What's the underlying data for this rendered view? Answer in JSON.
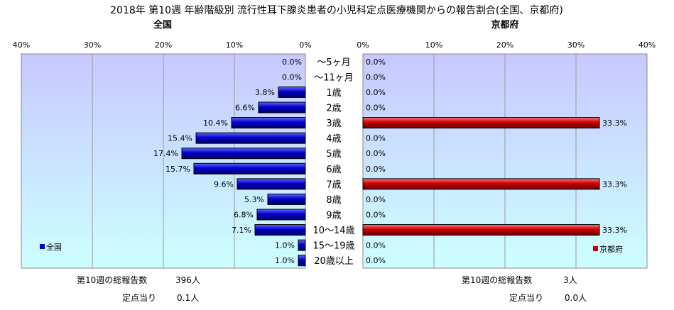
{
  "title": "2018年 第10週 年齢階級別 流行性耳下腺炎患者の小児科定点医療機関からの報告割合(全国、京都府)",
  "colors": {
    "national_bar": "#0000cc",
    "kyoto_bar": "#cc0000",
    "plot_bg_top": "#c8c8ff",
    "plot_bg_bottom": "#ccffff"
  },
  "chart_data": [
    {
      "type": "bar",
      "orientation": "horizontal",
      "direction": "right-to-left",
      "title": "全国",
      "legend": {
        "label": "全国",
        "position": "bottom-left"
      },
      "xlim": [
        0,
        40
      ],
      "xticks": [
        "40%",
        "30%",
        "20%",
        "10%",
        "0%"
      ],
      "categories": [
        "～5ヶ月",
        "～11ヶ月",
        "1歳",
        "2歳",
        "3歳",
        "4歳",
        "5歳",
        "6歳",
        "7歳",
        "8歳",
        "9歳",
        "10～14歳",
        "15～19歳",
        "20歳以上"
      ],
      "values": [
        0.0,
        0.0,
        3.8,
        6.6,
        10.4,
        15.4,
        17.4,
        15.7,
        9.6,
        5.3,
        6.8,
        7.1,
        1.0,
        1.0
      ],
      "value_labels": [
        "0.0%",
        "0.0%",
        "3.8%",
        "6.6%",
        "10.4%",
        "15.4%",
        "17.4%",
        "15.7%",
        "9.6%",
        "5.3%",
        "6.8%",
        "7.1%",
        "1.0%",
        "1.0%"
      ]
    },
    {
      "type": "bar",
      "orientation": "horizontal",
      "direction": "left-to-right",
      "title": "京都府",
      "legend": {
        "label": "京都府",
        "position": "bottom-right"
      },
      "xlim": [
        0,
        40
      ],
      "xticks": [
        "0%",
        "10%",
        "20%",
        "30%",
        "40%"
      ],
      "categories": [
        "～5ヶ月",
        "～11ヶ月",
        "1歳",
        "2歳",
        "3歳",
        "4歳",
        "5歳",
        "6歳",
        "7歳",
        "8歳",
        "9歳",
        "10～14歳",
        "15～19歳",
        "20歳以上"
      ],
      "values": [
        0.0,
        0.0,
        0.0,
        0.0,
        33.3,
        0.0,
        0.0,
        0.0,
        33.3,
        0.0,
        0.0,
        33.3,
        0.0,
        0.0
      ],
      "value_labels": [
        "0.0%",
        "0.0%",
        "0.0%",
        "0.0%",
        "33.3%",
        "0.0%",
        "0.0%",
        "0.0%",
        "33.3%",
        "0.0%",
        "0.0%",
        "33.3%",
        "0.0%",
        "0.0%"
      ]
    }
  ],
  "national_stats": {
    "total_label": "第10週の総報告数",
    "total_value": "396人",
    "per_site_label": "定点当り",
    "per_site_value": "0.1人"
  },
  "kyoto_stats": {
    "total_label": "第10週の総報告数",
    "total_value": "3人",
    "per_site_label": "定点当り",
    "per_site_value": "0.0人"
  }
}
